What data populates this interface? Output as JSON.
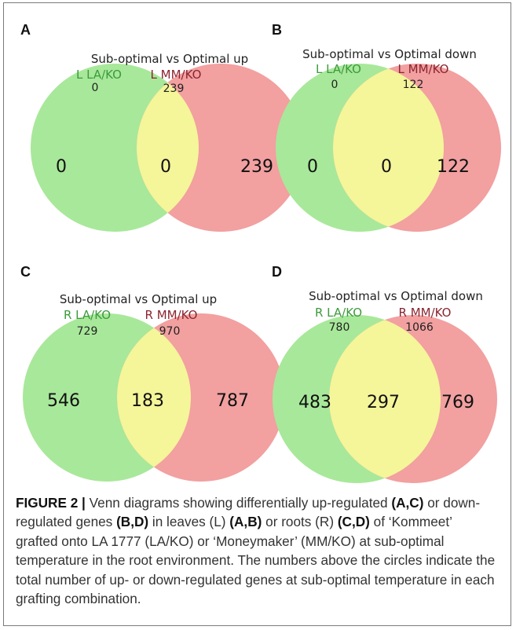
{
  "panels": [
    {
      "letter": "A",
      "title": "Sub-optimal vs Optimal up",
      "left_label": "L LA/KO",
      "right_label": "L MM/KO",
      "left_total": "0",
      "right_total": "239",
      "only_left": "0",
      "overlap": "0",
      "only_right": "239"
    },
    {
      "letter": "B",
      "title": "Sub-optimal vs Optimal down",
      "left_label": "L LA/KO",
      "right_label": "L MM/KO",
      "left_total": "0",
      "right_total": "122",
      "only_left": "0",
      "overlap": "0",
      "only_right": "122"
    },
    {
      "letter": "C",
      "title": "Sub-optimal vs Optimal up",
      "left_label": "R LA/KO",
      "right_label": "R MM/KO",
      "left_total": "729",
      "right_total": "970",
      "only_left": "546",
      "overlap": "183",
      "only_right": "787"
    },
    {
      "letter": "D",
      "title": "Sub-optimal vs Optimal down",
      "left_label": "R LA/KO",
      "right_label": "R MM/KO",
      "left_total": "780",
      "right_total": "1066",
      "only_left": "483",
      "overlap": "297",
      "only_right": "769"
    }
  ],
  "colors": {
    "left_circle": "#a8e89a",
    "right_circle": "#f2a0a0",
    "overlap": "#f5f59a",
    "left_label": "#3d9a3d",
    "right_label": "#8a2530"
  },
  "caption": {
    "figure_label": "FIGURE 2 |",
    "t1": " Venn diagrams showing differentially up-regulated ",
    "r1": "(A,C)",
    "t2": " or down-regulated genes ",
    "r2": "(B,D)",
    "t3": " in leaves (L) ",
    "r3": "(A,B)",
    "t4": " or roots (R) ",
    "r4": "(C,D)",
    "t5": " of ‘Kommeet’ grafted onto LA 1777 (LA/KO) or ‘Moneymaker’ (MM/KO) at sub-optimal temperature in the root environment. The numbers above the circles indicate the total number of up- or down-regulated genes at sub-optimal temperature in each grafting combination."
  }
}
